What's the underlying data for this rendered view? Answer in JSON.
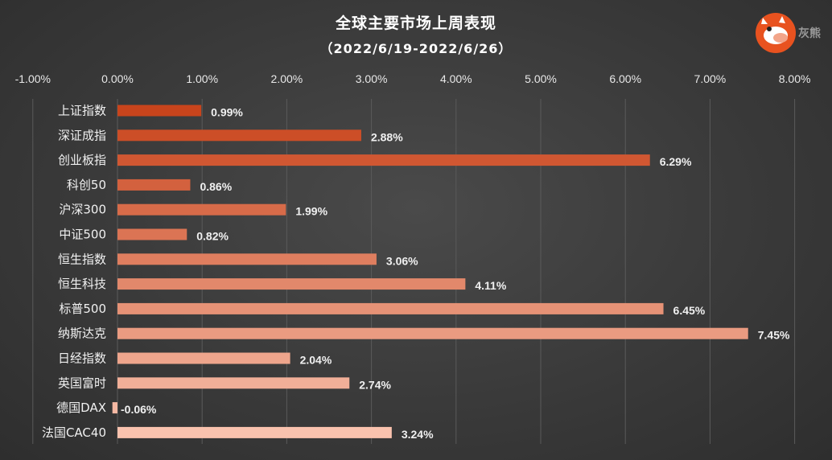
{
  "header": {
    "title": "全球主要市场上周表现",
    "subtitle": "（2022/6/19-2022/6/26）"
  },
  "logo": {
    "icon": "cartoon-horse-head-icon",
    "text": "灰熊",
    "color": "#e8521f"
  },
  "colors": {
    "dark_bar": "#c8441c",
    "light_bar": "#f9c2ae",
    "background": "#3c3c3c"
  },
  "chart_data": {
    "type": "bar",
    "orientation": "horizontal",
    "title": "全球主要市场上周表现",
    "subtitle": "（2022/6/19-2022/6/26）",
    "categories": [
      "上证指数",
      "深证成指",
      "创业板指",
      "科创50",
      "沪深300",
      "中证500",
      "恒生指数",
      "恒生科技",
      "标普500",
      "纳斯达克",
      "日经指数",
      "英国富时",
      "德国DAX",
      "法国CAC40"
    ],
    "values": [
      0.99,
      2.88,
      6.29,
      0.86,
      1.99,
      0.82,
      3.06,
      4.11,
      6.45,
      7.45,
      2.04,
      2.74,
      -0.06,
      3.24
    ],
    "value_labels": [
      "0.99%",
      "2.88%",
      "6.29%",
      "0.86%",
      "1.99%",
      "0.82%",
      "3.06%",
      "4.11%",
      "6.45%",
      "7.45%",
      "2.04%",
      "2.74%",
      "-0.06%",
      "3.24%"
    ],
    "xlim": [
      -1,
      8
    ],
    "x_ticks": [
      -1,
      0,
      1,
      2,
      3,
      4,
      5,
      6,
      7,
      8
    ],
    "x_tick_labels": [
      "-1.00%",
      "0.00%",
      "1.00%",
      "2.00%",
      "3.00%",
      "4.00%",
      "5.00%",
      "6.00%",
      "7.00%",
      "8.00%"
    ],
    "axis_position": "top",
    "grid": true,
    "legend": false
  }
}
